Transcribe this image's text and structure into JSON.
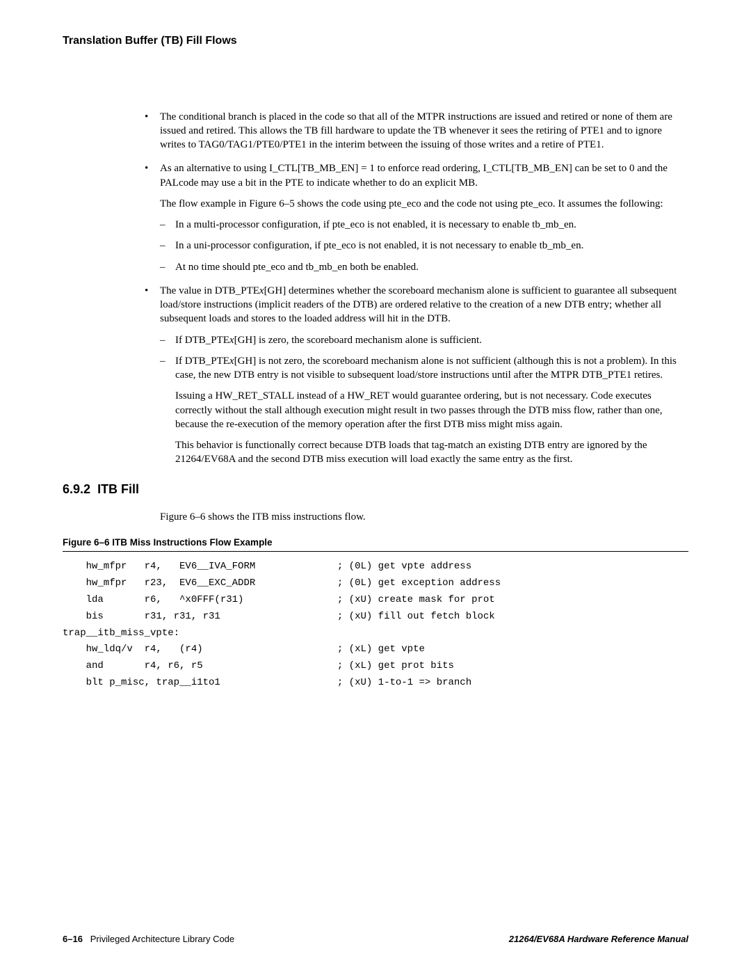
{
  "header": {
    "title": "Translation Buffer (TB) Fill Flows"
  },
  "bullets": {
    "b1": "The conditional branch is placed in the code so that all of the MTPR instructions are issued and retired or none of them are issued and retired.  This allows the TB fill hardware to update the TB whenever it sees the retiring of PTE1 and to ignore writes to TAG0/TAG1/PTE0/PTE1 in the interim between the issuing of those writes and a retire of PTE1.",
    "b2": "As an alternative to using I_CTL[TB_MB_EN] = 1 to enforce read ordering, I_CTL[TB_MB_EN] can be set to 0 and the PALcode may use a bit in the PTE to indicate whether to do an explicit MB.",
    "b2_p": "The flow example in Figure 6–5 shows the code using pte_eco and the code not using pte_eco. It assumes the following:",
    "b2_s1": "In a multi-processor configuration, if pte_eco is not enabled, it is necessary to enable tb_mb_en.",
    "b2_s2": "In a uni-processor configuration, if pte_eco is not enabled, it is not necessary to enable tb_mb_en.",
    "b2_s3": "At no time should pte_eco and tb_mb_en both be enabled.",
    "b3_pre": "The value in DTB_PTE",
    "b3_x": "x",
    "b3_post": "[GH] determines whether the scoreboard mechanism alone is sufficient to guarantee all subsequent load/store instructions (implicit readers of the DTB) are ordered relative to the creation of a new DTB entry; whether all subsequent loads and stores to the loaded address will hit in the DTB.",
    "b3_s1_pre": "If DTB_PTE",
    "b3_s1_x": "x",
    "b3_s1_post": "[GH] is zero, the scoreboard mechanism alone is sufficient.",
    "b3_s2_pre": "If DTB_PTE",
    "b3_s2_x": "x",
    "b3_s2_post": "[GH] is not zero, the scoreboard mechanism alone is not sufficient (although this is not a problem). In this case, the new DTB entry is not visible to subsequent load/store instructions until after the MTPR DTB_PTE1 retires.",
    "b3_p1": "Issuing a HW_RET_STALL instead of a HW_RET would guarantee ordering, but is not necessary. Code executes correctly without the stall although execution might result in two passes through the DTB miss flow, rather than one, because the re-execution of the memory operation after the first DTB miss might miss again.",
    "b3_p2": "This behavior is functionally correct because DTB loads that tag-match an existing DTB entry are ignored by the 21264/EV68A and the second DTB miss execution will load exactly the same entry as the first."
  },
  "section": {
    "number": "6.9.2",
    "title": "ITB Fill",
    "intro": "Figure 6–6 shows the ITB miss instructions flow."
  },
  "figure": {
    "title": "Figure 6–6  ITB Miss Instructions Flow Example",
    "code": "    hw_mfpr   r4,   EV6__IVA_FORM              ; (0L) get vpte address\n    hw_mfpr   r23,  EV6__EXC_ADDR              ; (0L) get exception address\n    lda       r6,   ^x0FFF(r31)                ; (xU) create mask for prot\n    bis       r31, r31, r31                    ; (xU) fill out fetch block\ntrap__itb_miss_vpte:\n    hw_ldq/v  r4,   (r4)                       ; (xL) get vpte\n    and       r4, r6, r5                       ; (xL) get prot bits\n    blt p_misc, trap__i1to1                    ; (xU) 1-to-1 => branch"
  },
  "footer": {
    "page": "6–16",
    "chapter": "Privileged Architecture Library Code",
    "manual": "21264/EV68A Hardware Reference Manual"
  }
}
